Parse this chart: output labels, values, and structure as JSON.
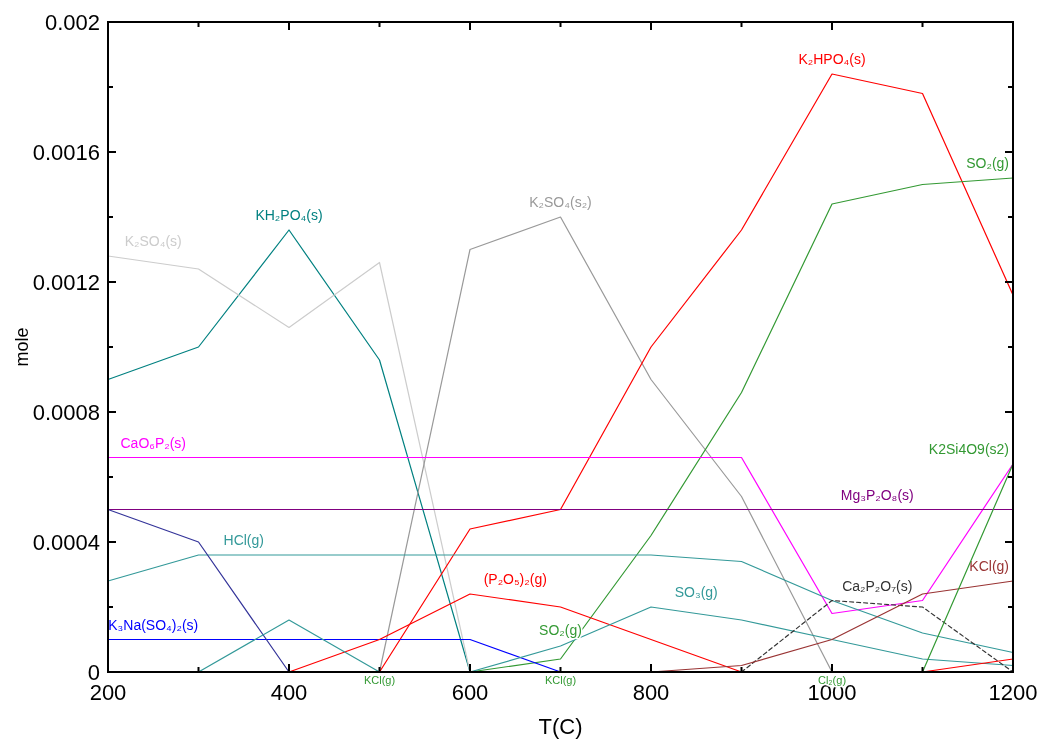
{
  "chart_data": {
    "type": "line",
    "xlabel": "T(C)",
    "ylabel": "mole",
    "x": [
      200,
      300,
      400,
      500,
      600,
      700,
      800,
      900,
      1000,
      1100,
      1200
    ],
    "xlim": [
      200,
      1200
    ],
    "xticks": [
      200,
      {
        "value": 300,
        "label": null
      },
      400,
      {
        "value": 500,
        "label": null
      },
      600,
      {
        "value": 700,
        "label": null
      },
      800,
      {
        "value": 900,
        "label": null
      },
      1000,
      {
        "value": 1100,
        "label": null
      },
      1200
    ],
    "ylim": [
      0,
      0.002
    ],
    "yticks": [
      0,
      {
        "value": 0.0002,
        "label": null
      },
      0.0004,
      {
        "value": 0.0006,
        "label": null
      },
      0.0008,
      {
        "value": 0.001,
        "label": null
      },
      0.0012,
      {
        "value": 0.0014,
        "label": null
      },
      0.0016,
      {
        "value": 0.0018,
        "label": null
      },
      0.002
    ],
    "grid": false,
    "legend": false,
    "marker": "none",
    "line_style": "solid",
    "series": [
      {
        "name": "KH₂PO₄(s)",
        "color": "#008080",
        "values": [
          0.0009,
          0.001,
          0.00136,
          0.00096,
          0,
          null,
          null,
          null,
          null,
          null,
          null
        ]
      },
      {
        "name": "K₂SO₄(s)",
        "color": "#cccccc",
        "values": [
          0.00128,
          0.00124,
          0.00106,
          0.00126,
          0,
          null,
          null,
          null,
          null,
          null,
          null
        ]
      },
      {
        "name": "K₂SO₄(s₂)",
        "color": "#999999",
        "values": [
          null,
          null,
          null,
          0,
          0.0013,
          0.0014,
          0.0009,
          0.00054,
          0,
          null,
          null
        ]
      },
      {
        "name": "K₂HPO₄(s)",
        "color": "#ff0000",
        "values": [
          null,
          null,
          null,
          0,
          0.00044,
          0.0005,
          0.001,
          0.00136,
          0.00184,
          0.00178,
          0.00116
        ]
      },
      {
        "name": "SO₂(g)",
        "color": "#339933",
        "values": [
          null,
          null,
          null,
          null,
          0,
          4e-05,
          0.00042,
          0.00086,
          0.00144,
          0.0015,
          0.00152
        ]
      },
      {
        "name": "CaO₆P₂(s)",
        "color": "#ff00ff",
        "values": [
          0.00066,
          0.00066,
          0.00066,
          0.00066,
          0.00066,
          0.00066,
          0.00066,
          0.00066,
          0.00018,
          0.00022,
          0.00064
        ]
      },
      {
        "name": "Mg₃P₂O₈(s)",
        "color": "#800080",
        "values": [
          0.0005,
          0.0005,
          0.0005,
          0.0005,
          0.0005,
          0.0005,
          0.0005,
          0.0005,
          0.0005,
          0.0005,
          0.0005
        ]
      },
      {
        "name": "HCl(g)",
        "color": "#339999",
        "values": [
          0.00028,
          0.00036,
          0.00036,
          0.00036,
          0.00036,
          0.00036,
          0.00036,
          0.00034,
          0.00022,
          0.00012,
          6e-05
        ]
      },
      {
        "name": "K₃Na(SO₄)₂(s)",
        "color": "#0000ff",
        "values": [
          0.0001,
          0.0001,
          0.0001,
          0.0001,
          0.0001,
          0,
          null,
          null,
          null,
          null,
          null
        ]
      },
      {
        "color": "#333399",
        "values": [
          0.0005,
          0.0004,
          0,
          null,
          null,
          null,
          null,
          null,
          null,
          null,
          null
        ]
      },
      {
        "name": "(P₂O₅)₂(g)",
        "color": "#ff0000",
        "values": [
          null,
          0,
          0,
          0.0001,
          0.00024,
          0.0002,
          0.0001,
          0,
          null,
          null,
          null
        ]
      },
      {
        "name": "SO₃(g)",
        "color": "#339999",
        "values": [
          null,
          0,
          0.00016,
          0,
          0,
          8e-05,
          0.0002,
          0.00016,
          0.0001,
          4e-05,
          2e-05
        ]
      },
      {
        "name": "Ca₂P₂O₇(s)",
        "color": "#333333",
        "line_style": "dashed",
        "values": [
          null,
          null,
          null,
          null,
          null,
          null,
          null,
          0,
          0.00022,
          0.0002,
          0
        ]
      },
      {
        "name": "KCl(g)",
        "color": "#993333",
        "values": [
          null,
          null,
          null,
          null,
          null,
          null,
          0,
          2e-05,
          0.0001,
          0.00024,
          0.00028
        ]
      },
      {
        "name": "K2Si4O9(s2)",
        "color": "#339933",
        "values": [
          null,
          null,
          null,
          null,
          null,
          null,
          null,
          null,
          null,
          0,
          0.00064
        ]
      },
      {
        "color": "#ff0000",
        "values": [
          null,
          null,
          null,
          null,
          null,
          null,
          null,
          null,
          null,
          0,
          4e-05
        ]
      }
    ],
    "annotations": [
      {
        "text": "SO₂(g)",
        "x": 700,
        "y": 4e-05
      },
      {
        "text": "KCl(g)",
        "x": 500,
        "y": 0
      },
      {
        "text": "KCl(g)",
        "x": 700,
        "y": 0
      },
      {
        "text": "Cl₂(g)",
        "x": 1000,
        "y": 0
      }
    ]
  }
}
